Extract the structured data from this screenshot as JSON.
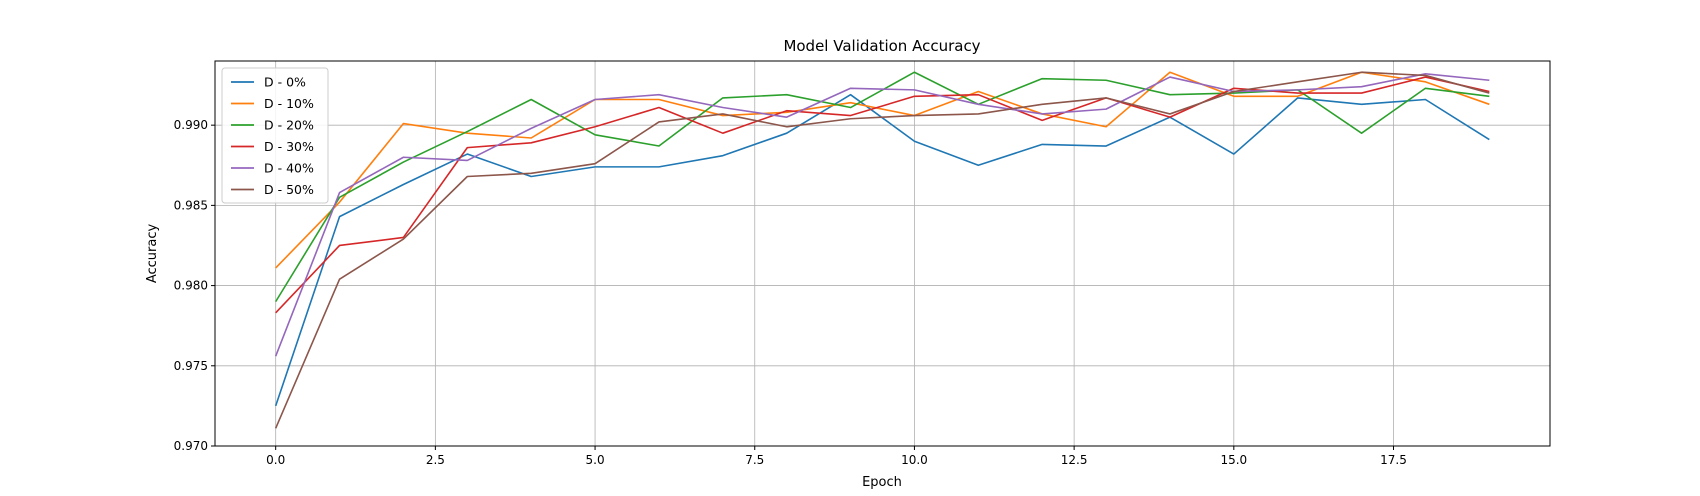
{
  "chart_data": {
    "type": "line",
    "title": "Model Validation Accuracy",
    "xlabel": "Epoch",
    "ylabel": "Accuracy",
    "xlim": [
      -0.95,
      19.95
    ],
    "ylim": [
      0.97,
      0.994
    ],
    "xticks": [
      0.0,
      2.5,
      5.0,
      7.5,
      10.0,
      12.5,
      15.0,
      17.5
    ],
    "xtick_labels": [
      "0.0",
      "2.5",
      "5.0",
      "7.5",
      "10.0",
      "12.5",
      "15.0",
      "17.5"
    ],
    "yticks": [
      0.97,
      0.975,
      0.98,
      0.985,
      0.99
    ],
    "ytick_labels": [
      "0.970",
      "0.975",
      "0.980",
      "0.985",
      "0.990"
    ],
    "grid": true,
    "legend_position": "top-left",
    "x": [
      0,
      1,
      2,
      3,
      4,
      5,
      6,
      7,
      8,
      9,
      10,
      11,
      12,
      13,
      14,
      15,
      16,
      17,
      18,
      19
    ],
    "series": [
      {
        "name": "D - 0%",
        "color": "#1f77b4",
        "values": [
          0.9725,
          0.9843,
          0.9863,
          0.9882,
          0.9868,
          0.9874,
          0.9874,
          0.9881,
          0.9895,
          0.9919,
          0.989,
          0.9875,
          0.9888,
          0.9887,
          0.9905,
          0.9882,
          0.9917,
          0.9913,
          0.9916,
          0.9891
        ]
      },
      {
        "name": "D - 10%",
        "color": "#ff7f0e",
        "values": [
          0.9811,
          0.9852,
          0.9901,
          0.9895,
          0.9892,
          0.9916,
          0.9916,
          0.9906,
          0.9908,
          0.9914,
          0.9906,
          0.9921,
          0.9907,
          0.9899,
          0.9933,
          0.9918,
          0.9918,
          0.9933,
          0.9927,
          0.9913
        ]
      },
      {
        "name": "D - 20%",
        "color": "#2ca02c",
        "values": [
          0.979,
          0.9855,
          0.9877,
          0.9896,
          0.9916,
          0.9894,
          0.9887,
          0.9917,
          0.9919,
          0.9911,
          0.9933,
          0.9913,
          0.9929,
          0.9928,
          0.9919,
          0.992,
          0.9922,
          0.9895,
          0.9923,
          0.9918
        ]
      },
      {
        "name": "D - 30%",
        "color": "#d62728",
        "values": [
          0.9783,
          0.9825,
          0.983,
          0.9886,
          0.9889,
          0.9899,
          0.9911,
          0.9895,
          0.9909,
          0.9906,
          0.9918,
          0.9919,
          0.9903,
          0.9917,
          0.9905,
          0.9923,
          0.992,
          0.992,
          0.993,
          0.9921
        ]
      },
      {
        "name": "D - 40%",
        "color": "#9467bd",
        "values": [
          0.9756,
          0.9858,
          0.988,
          0.9878,
          0.9898,
          0.9916,
          0.9919,
          0.9911,
          0.9905,
          0.9923,
          0.9922,
          0.9913,
          0.9907,
          0.991,
          0.993,
          0.9921,
          0.9922,
          0.9924,
          0.9932,
          0.9928
        ]
      },
      {
        "name": "D - 50%",
        "color": "#8c564b",
        "values": [
          0.9711,
          0.9804,
          0.9829,
          0.9868,
          0.987,
          0.9876,
          0.9902,
          0.9907,
          0.9899,
          0.9904,
          0.9906,
          0.9907,
          0.9913,
          0.9917,
          0.9907,
          0.9921,
          0.9927,
          0.9933,
          0.9931,
          0.992
        ]
      }
    ]
  }
}
